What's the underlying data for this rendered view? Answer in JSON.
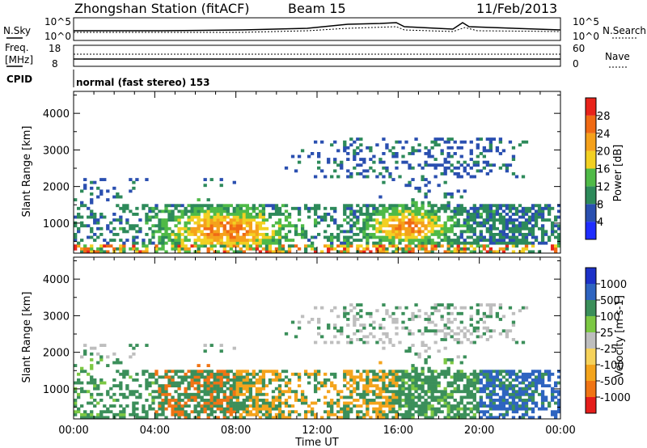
{
  "header": {
    "station": "Zhongshan Station (fitACF)",
    "beam": "Beam 15",
    "date": "11/Feb/2013"
  },
  "panels": {
    "nsky_label": "N.Sky",
    "nsearch_label": "N.Search",
    "nsky_ticks": [
      "10^5",
      "10^0"
    ],
    "nsearch_ticks": [
      "10^5",
      "10^0"
    ],
    "freq_label": [
      "Freq.",
      "[MHz]"
    ],
    "freq_ticks": [
      "18",
      "8"
    ],
    "nave_label": "Nave",
    "nave_ticks": [
      "60",
      "0"
    ],
    "cpid_label": "CPID",
    "cpid_text": "normal (fast stereo) 153"
  },
  "colors": {
    "power": [
      "#1f2dff",
      "#2a4fb0",
      "#2d8a5a",
      "#4fba47",
      "#f2d022",
      "#f5a11b",
      "#f06a14",
      "#e8231a"
    ],
    "velocity": [
      "#e51d1a",
      "#f07414",
      "#f4a41c",
      "#f6d25a",
      "#bebebe",
      "#7cc843",
      "#3b8f5a",
      "#2e64c0",
      "#1c31c8"
    ]
  },
  "chart_data": [
    {
      "type": "heatmap",
      "name": "power",
      "ylabel": "Slant Range [km]",
      "xlabel": "Time UT",
      "x_range_hours": [
        0,
        24
      ],
      "ylim": [
        180,
        4600
      ],
      "yticks": [
        "1000",
        "2000",
        "3000",
        "4000"
      ],
      "xticks": [
        "00:00",
        "04:00",
        "08:00",
        "12:00",
        "16:00",
        "20:00",
        "00:00"
      ],
      "colorbar_label": "Power [dB]",
      "colorbar_ticks": [
        "4",
        "8",
        "12",
        "16",
        "20",
        "24",
        "28"
      ],
      "colorbar_range": [
        0,
        32
      ]
    },
    {
      "type": "heatmap",
      "name": "velocity",
      "ylabel": "Slant Range [km]",
      "xlabel": "Time UT",
      "x_range_hours": [
        0,
        24
      ],
      "ylim": [
        180,
        4600
      ],
      "yticks": [
        "1000",
        "2000",
        "3000",
        "4000"
      ],
      "xticks": [
        "00:00",
        "04:00",
        "08:00",
        "12:00",
        "16:00",
        "20:00",
        "00:00"
      ],
      "colorbar_label": "Velocity  [m s-1]",
      "colorbar_ticks": [
        "1000",
        "500",
        "100",
        "25",
        "-25",
        "-100",
        "-500",
        "-1000"
      ]
    }
  ]
}
